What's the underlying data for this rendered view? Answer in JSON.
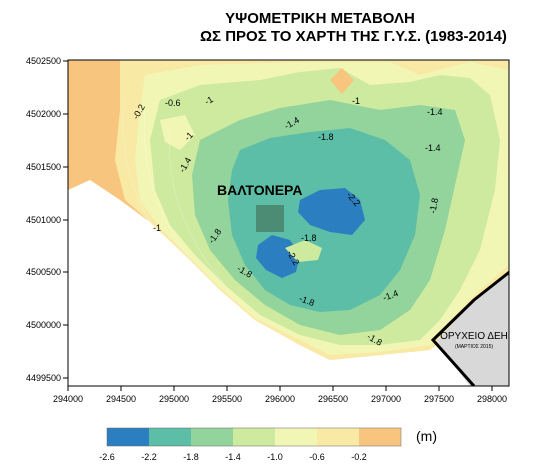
{
  "title": {
    "line1": "ΥΨΟΜΕΤΡΙΚΗ ΜΕΤΑΒΟΛΗ",
    "line2": "ΩΣ ΠΡΟΣ ΤΟ ΧΑΡΤΗ ΤΗΣ  Γ.Υ.Σ. (1983-2014)"
  },
  "axes": {
    "x_ticks": [
      "294000",
      "294500",
      "295000",
      "295500",
      "296000",
      "296500",
      "297000",
      "297500",
      "298000"
    ],
    "y_ticks": [
      "4502500",
      "4502000",
      "4501500",
      "4501000",
      "4500500",
      "4500000",
      "4499500"
    ]
  },
  "places": {
    "village": "ΒΑΛΤΟΝΕΡΑ",
    "mine": "ΟΡΥΧΕΙΟ ΔΕΗ",
    "mine_note": "(ΜΑΡΤΙΟΣ 2015)"
  },
  "contour_labels": [
    "-0.2",
    "-0.6",
    "-1",
    "-1",
    "-1.4",
    "-1.8",
    "-1.4",
    "-1",
    "-1.4",
    "-1.8",
    "-2.2",
    "-1.8",
    "-1.8",
    "-2.2",
    "-1.8",
    "-1.8",
    "-1.4",
    "-1.8",
    "-1",
    "-1.4"
  ],
  "legend": {
    "unit": "(m)",
    "breaks": [
      "-2.6",
      "-2.2",
      "-1.8",
      "-1.4",
      "-1.0",
      "-0.6",
      "-0.2"
    ],
    "colors": [
      "#2b7fc0",
      "#5cbea6",
      "#93d39c",
      "#cdea9f",
      "#f2f6b5",
      "#f8e9a4",
      "#f8c57e"
    ]
  }
}
